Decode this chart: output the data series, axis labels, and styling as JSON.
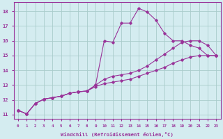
{
  "xlabel": "Windchill (Refroidissement éolien,°C)",
  "bg_color": "#d4ecf0",
  "grid_color": "#aacccc",
  "line_color": "#993399",
  "xlim": [
    -0.5,
    23.5
  ],
  "ylim": [
    10.7,
    18.6
  ],
  "xticks": [
    0,
    1,
    2,
    3,
    4,
    5,
    6,
    7,
    8,
    9,
    10,
    11,
    12,
    13,
    14,
    15,
    16,
    17,
    18,
    19,
    20,
    21,
    22,
    23
  ],
  "yticks": [
    11,
    12,
    13,
    14,
    15,
    16,
    17,
    18
  ],
  "curve1_x": [
    0,
    1,
    2,
    3,
    4,
    5,
    6,
    7,
    8,
    9,
    10,
    11,
    12,
    13,
    14,
    15,
    16,
    17,
    18,
    19,
    20,
    21,
    22,
    23
  ],
  "curve1_y": [
    11.3,
    11.05,
    11.75,
    12.05,
    12.15,
    12.25,
    12.45,
    12.55,
    12.6,
    13.0,
    16.0,
    15.9,
    17.2,
    17.2,
    18.2,
    17.95,
    17.4,
    16.5,
    16.0,
    16.0,
    15.7,
    15.5,
    15.0,
    15.0
  ],
  "curve2_x": [
    0,
    1,
    2,
    3,
    4,
    5,
    6,
    7,
    8,
    9,
    10,
    11,
    12,
    13,
    14,
    15,
    16,
    17,
    18,
    19,
    20,
    21,
    22,
    23
  ],
  "curve2_y": [
    11.3,
    11.05,
    11.75,
    12.05,
    12.15,
    12.25,
    12.45,
    12.55,
    12.6,
    13.0,
    13.4,
    13.6,
    13.7,
    13.8,
    14.0,
    14.3,
    14.7,
    15.1,
    15.5,
    15.9,
    16.0,
    16.0,
    15.7,
    15.0
  ],
  "curve3_x": [
    0,
    1,
    2,
    3,
    4,
    5,
    6,
    7,
    8,
    9,
    10,
    11,
    12,
    13,
    14,
    15,
    16,
    17,
    18,
    19,
    20,
    21,
    22,
    23
  ],
  "curve3_y": [
    11.3,
    11.05,
    11.75,
    12.05,
    12.15,
    12.25,
    12.45,
    12.55,
    12.6,
    12.9,
    13.1,
    13.2,
    13.3,
    13.4,
    13.6,
    13.8,
    14.0,
    14.2,
    14.5,
    14.7,
    14.9,
    15.0,
    15.0,
    15.0
  ]
}
